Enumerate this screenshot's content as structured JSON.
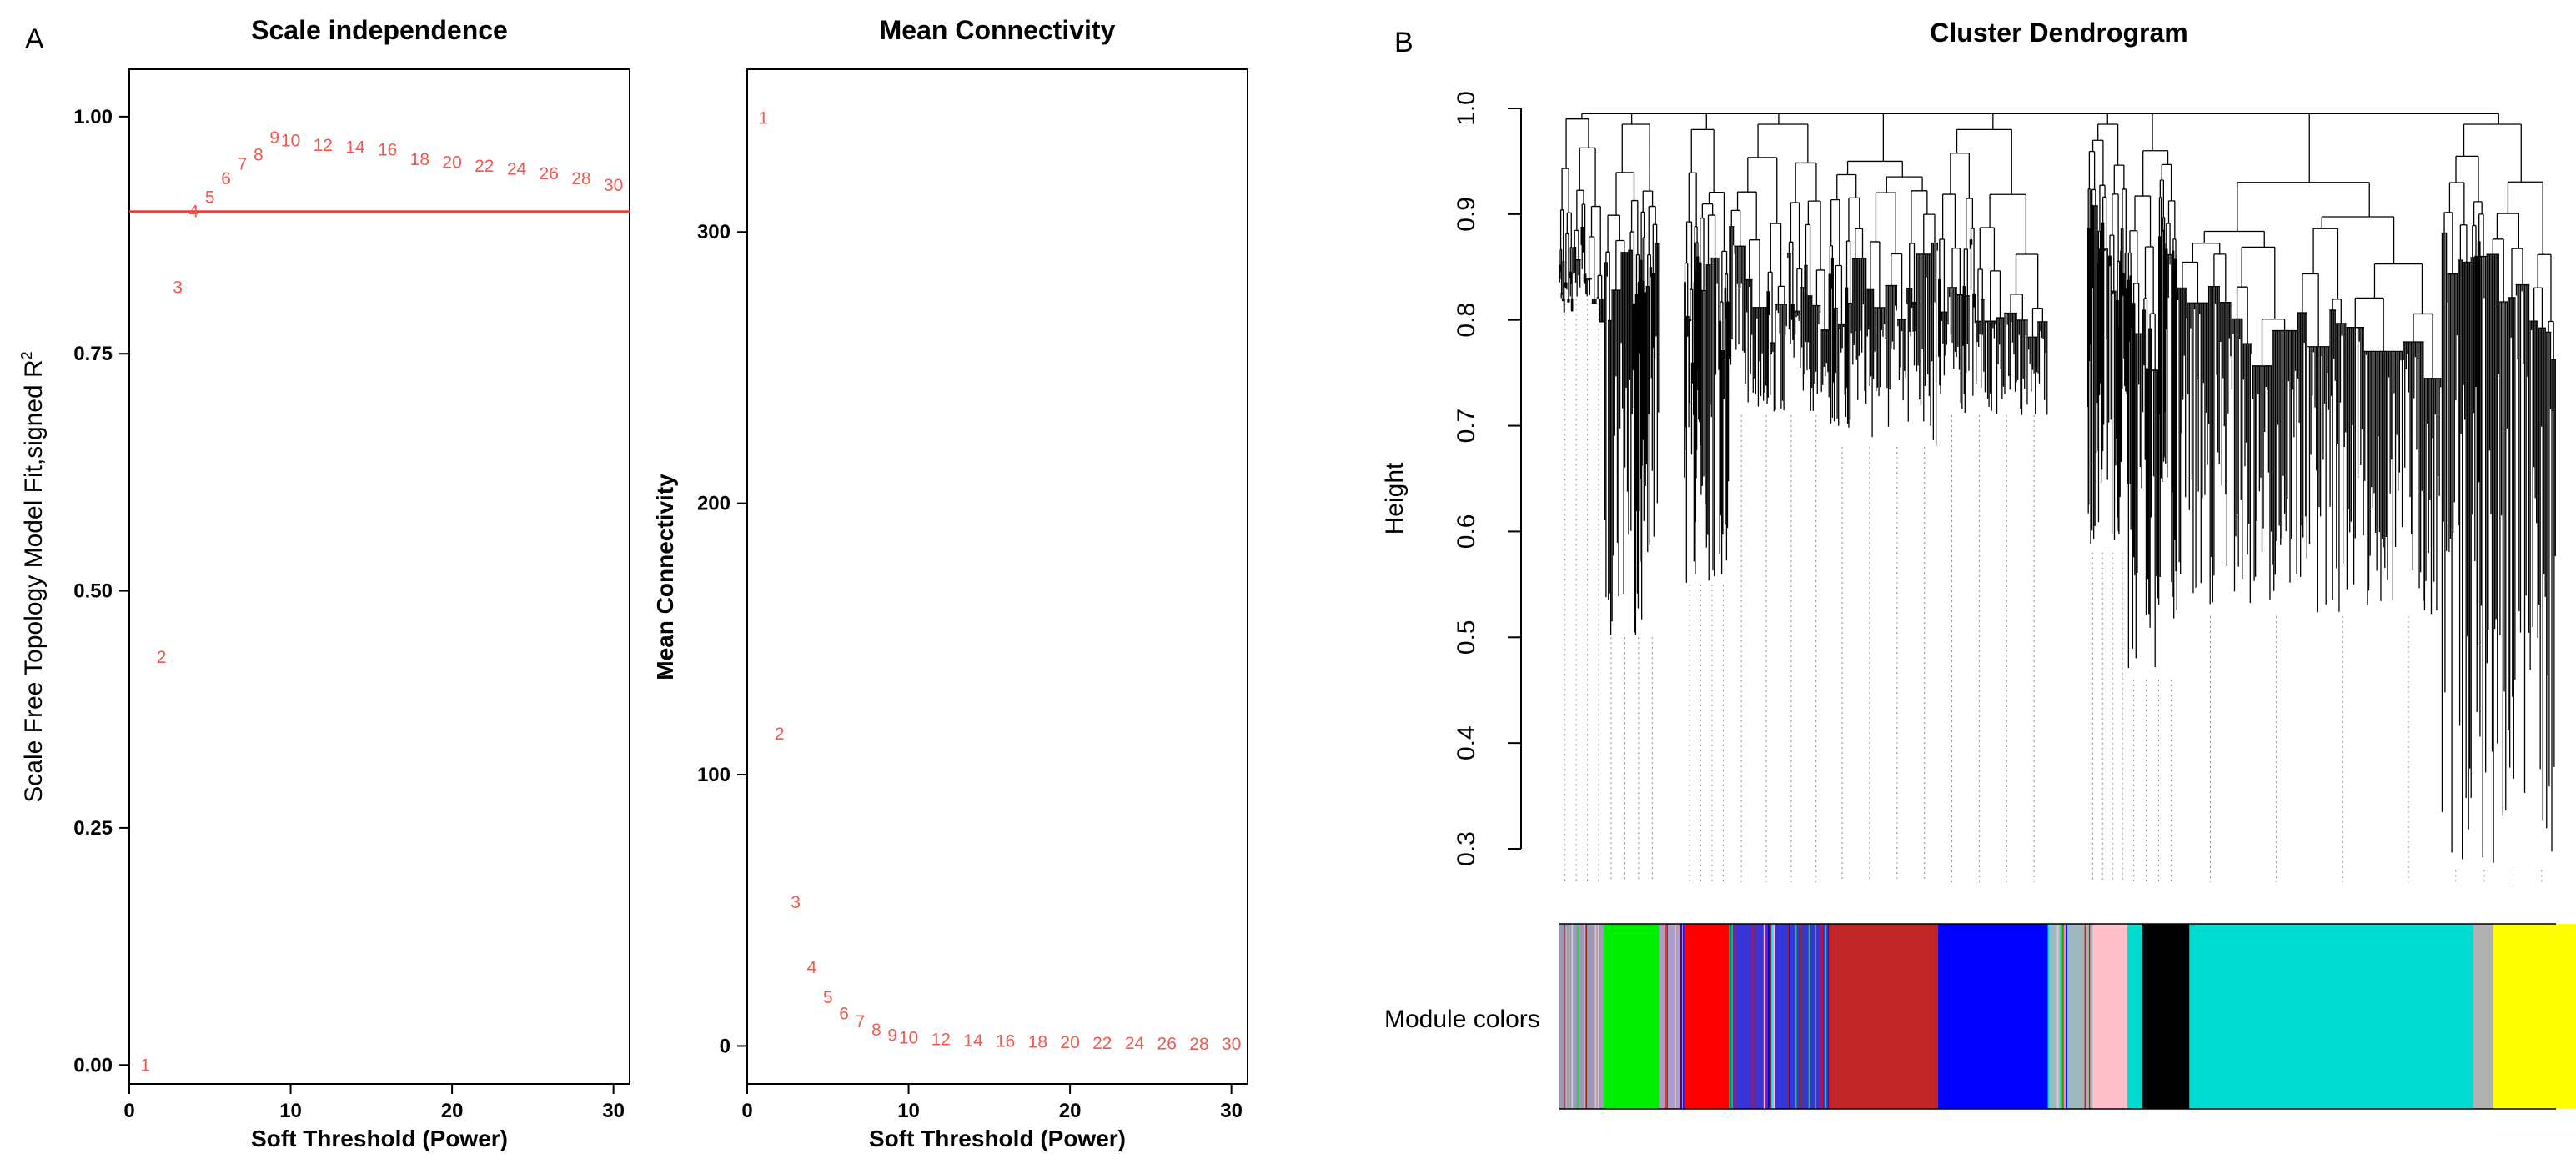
{
  "figure": {
    "panel_a_label": "A",
    "panel_b_label": "B"
  },
  "colors": {
    "points": "#f4574f",
    "threshold_line": "#e8332c",
    "axis": "#000000"
  },
  "chart_data": [
    {
      "type": "scatter",
      "title": "Scale independence",
      "xlabel": "Soft Threshold (Power)",
      "ylabel_main": "Scale Free Topology Model Fit,signed R",
      "ylabel_sup": "2",
      "xlim": [
        0,
        31
      ],
      "ylim": [
        -0.02,
        1.05
      ],
      "xticks": [
        "0",
        "10",
        "20",
        "30"
      ],
      "yticks": [
        "0.00",
        "0.25",
        "0.50",
        "0.75",
        "1.00"
      ],
      "points": {
        "x": [
          1,
          2,
          3,
          4,
          5,
          6,
          7,
          8,
          9,
          10,
          12,
          14,
          16,
          18,
          20,
          22,
          24,
          26,
          28,
          30
        ],
        "y": [
          0.0,
          0.43,
          0.82,
          0.9,
          0.915,
          0.935,
          0.95,
          0.96,
          0.978,
          0.975,
          0.97,
          0.968,
          0.965,
          0.955,
          0.952,
          0.948,
          0.945,
          0.94,
          0.935,
          0.928
        ],
        "labels": [
          "1",
          "2",
          "3",
          "4",
          "5",
          "6",
          "7",
          "8",
          "9",
          "10",
          "12",
          "14",
          "16",
          "18",
          "20",
          "22",
          "24",
          "26",
          "28",
          "30"
        ]
      },
      "hline": 0.9
    },
    {
      "type": "scatter",
      "title": "Mean Connectivity",
      "xlabel": "Soft Threshold (Power)",
      "ylabel": "Mean Connectivity",
      "xlim": [
        0,
        31
      ],
      "ylim": [
        -14,
        360
      ],
      "xticks": [
        "0",
        "10",
        "20",
        "30"
      ],
      "yticks": [
        "0",
        "100",
        "200",
        "300"
      ],
      "points": {
        "x": [
          1,
          2,
          3,
          4,
          5,
          6,
          7,
          8,
          9,
          10,
          12,
          14,
          16,
          18,
          20,
          22,
          24,
          26,
          28,
          30
        ],
        "y": [
          342,
          115,
          53,
          29,
          18,
          12,
          9,
          6,
          4,
          3,
          2.5,
          2,
          1.8,
          1.5,
          1.3,
          1.1,
          1,
          0.9,
          0.8,
          0.7
        ],
        "labels": [
          "1",
          "2",
          "3",
          "4",
          "5",
          "6",
          "7",
          "8",
          "9",
          "10",
          "12",
          "14",
          "16",
          "18",
          "20",
          "22",
          "24",
          "26",
          "28",
          "30"
        ]
      },
      "hline": null
    },
    {
      "type": "dendrogram",
      "title": "Cluster Dendrogram",
      "ylabel": "Height",
      "ylim": [
        0.3,
        1.0
      ],
      "yticks": [
        "0.3",
        "0.4",
        "0.5",
        "0.6",
        "0.7",
        "0.8",
        "0.9",
        "1.0"
      ],
      "color_bar_label": "Module colors",
      "module_colors": [
        {
          "name": "grey-mixed",
          "color": "#9a9ab8",
          "width": 0.045
        },
        {
          "name": "green",
          "color": "#00ee00",
          "width": 0.055
        },
        {
          "name": "grey-mixed",
          "color": "#a8a0c8",
          "width": 0.025
        },
        {
          "name": "red",
          "color": "#ff0000",
          "width": 0.045
        },
        {
          "name": "blue-mixed",
          "color": "#3535d8",
          "width": 0.1
        },
        {
          "name": "brown",
          "color": "#c02626",
          "width": 0.11
        },
        {
          "name": "blue",
          "color": "#0000ff",
          "width": 0.11
        },
        {
          "name": "grey-mixed",
          "color": "#9fb8c0",
          "width": 0.045
        },
        {
          "name": "pink",
          "color": "#ffc0cb",
          "width": 0.035
        },
        {
          "name": "turquoise-small",
          "color": "#00dcd0",
          "width": 0.015
        },
        {
          "name": "black",
          "color": "#000000",
          "width": 0.047
        },
        {
          "name": "turquoise",
          "color": "#00dcd0",
          "width": 0.285
        },
        {
          "name": "grey",
          "color": "#b0b0b0",
          "width": 0.02
        },
        {
          "name": "yellow",
          "color": "#ffff00",
          "width": 0.113
        }
      ],
      "clusters": [
        {
          "module": "grey-mixed",
          "start": 0.0,
          "end": 0.045,
          "merge": 0.99,
          "min": 0.82
        },
        {
          "module": "green",
          "start": 0.045,
          "end": 0.1,
          "merge": 0.985,
          "min": 0.5
        },
        {
          "module": "red",
          "start": 0.125,
          "end": 0.17,
          "merge": 0.98,
          "min": 0.55
        },
        {
          "module": "blue-mixed",
          "start": 0.17,
          "end": 0.27,
          "merge": 0.985,
          "min": 0.71
        },
        {
          "module": "brown",
          "start": 0.27,
          "end": 0.38,
          "merge": 0.95,
          "min": 0.68
        },
        {
          "module": "blue",
          "start": 0.38,
          "end": 0.49,
          "merge": 0.98,
          "min": 0.71
        },
        {
          "module": "pink",
          "start": 0.53,
          "end": 0.57,
          "merge": 0.985,
          "min": 0.58
        },
        {
          "module": "black",
          "start": 0.57,
          "end": 0.62,
          "merge": 0.96,
          "min": 0.46
        },
        {
          "module": "turquoise",
          "start": 0.62,
          "end": 0.885,
          "merge": 0.93,
          "min": 0.52
        },
        {
          "module": "yellow",
          "start": 0.885,
          "end": 1.0,
          "merge": 0.985,
          "min": 0.28
        }
      ]
    }
  ]
}
